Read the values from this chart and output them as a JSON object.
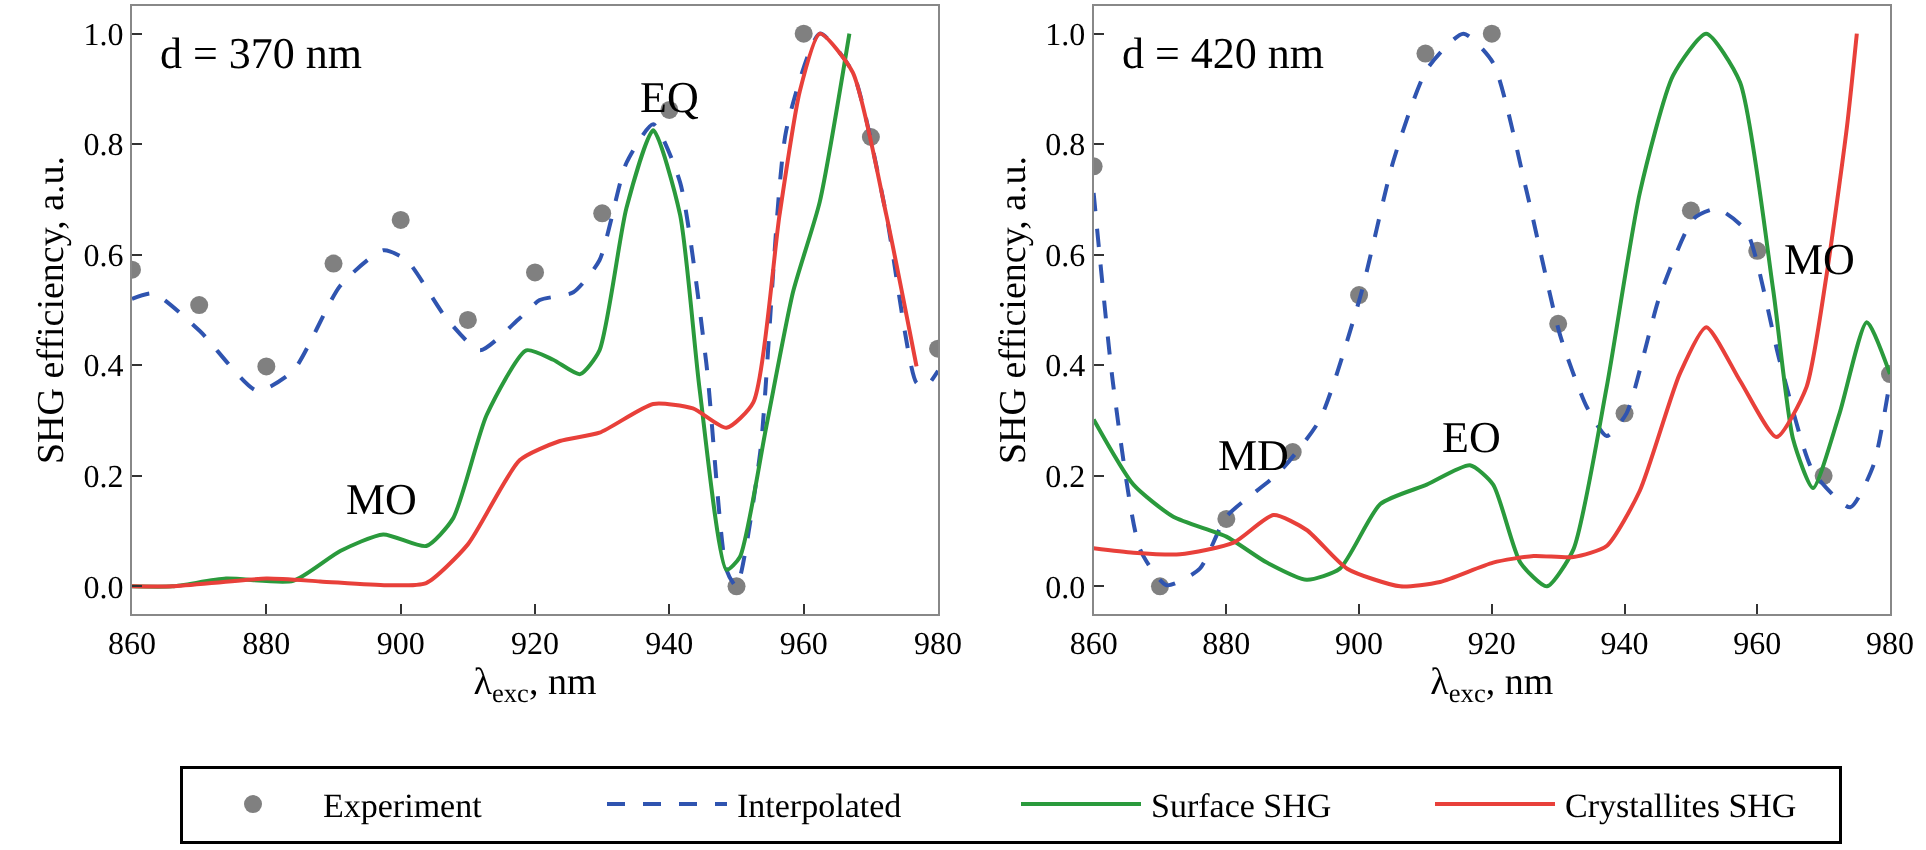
{
  "chart_data": [
    {
      "type": "line",
      "xlabel": "λ$_{exc}$, nm",
      "ylabel": "SHG efficiency, a.u.",
      "xlim": [
        860,
        980
      ],
      "xticks": [
        860,
        880,
        900,
        920,
        940,
        960,
        980
      ],
      "ylim": [
        -0.05,
        1.05
      ],
      "yticks": [
        {
          "value": 0,
          "label": "0.0"
        },
        {
          "value": 0.2,
          "label": "0.2"
        },
        {
          "value": 0.4,
          "label": "0.4"
        },
        {
          "value": 0.6,
          "label": "0.6"
        },
        {
          "value": 0.8,
          "label": "0.8"
        },
        {
          "value": 1,
          "label": "1.0"
        }
      ],
      "legend": "bottom",
      "annotations": [
        "d = 370 nm",
        "EQ",
        "MO"
      ],
      "series": [
        {
          "name": "Experiment",
          "type": "scatter",
          "marker": "circle",
          "color": "#808080",
          "x": [
            860,
            870,
            880,
            890,
            900,
            910,
            920,
            930,
            940,
            950,
            960,
            970,
            980
          ],
          "values": [
            0.573,
            0.509,
            0.398,
            0.584,
            0.663,
            0.482,
            0.568,
            0.675,
            0.862,
            0.0,
            1.0,
            0.813,
            0.43
          ]
        },
        {
          "name": "Interpolated",
          "line_style": "dashed",
          "color": "#2f54b0",
          "x": [
            860,
            863.2,
            870.1,
            878.6,
            884,
            891,
            897.4,
            900.9,
            906.8,
            911.8,
            917.7,
            920.7,
            925.7,
            929.6,
            933.6,
            937.6,
            941.6,
            945.5,
            948.5,
            950,
            953.5,
            957.4,
            962.4,
            967.3,
            972.3,
            976.8,
            978.3,
            980
          ],
          "values": [
            0.52,
            0.53,
            0.462,
            0.354,
            0.39,
            0.544,
            0.608,
            0.59,
            0.485,
            0.427,
            0.485,
            0.518,
            0.532,
            0.59,
            0.766,
            0.836,
            0.731,
            0.404,
            0.03,
            0.0,
            0.24,
            0.825,
            1.0,
            0.93,
            0.672,
            0.368,
            0.363,
            0.39
          ]
        },
        {
          "name": "Surface SHG",
          "line_style": "solid",
          "color": "#2a9a3c",
          "x": [
            860,
            866,
            874,
            884,
            891,
            897.4,
            903.8,
            907.8,
            912.8,
            918.7,
            922.7,
            926.7,
            929.6,
            933.6,
            937.6,
            941.6,
            944.5,
            948.5,
            950.5,
            954.4,
            958.4,
            962.4,
            966.8
          ],
          "values": [
            0.0,
            0.0,
            0.014,
            0.01,
            0.064,
            0.094,
            0.073,
            0.123,
            0.31,
            0.427,
            0.41,
            0.384,
            0.427,
            0.684,
            0.825,
            0.672,
            0.357,
            0.03,
            0.053,
            0.287,
            0.532,
            0.696,
            1.0
          ]
        },
        {
          "name": "Crystallites SHG",
          "line_style": "solid",
          "color": "#e8403a",
          "x": [
            860,
            866,
            880,
            888,
            897.9,
            903.8,
            910,
            917.7,
            923.7,
            929.6,
            937.6,
            943.5,
            948.5,
            952.5,
            956.4,
            959.4,
            962.4,
            967.3,
            972.3,
            976.8
          ],
          "values": [
            0.0,
            0.0,
            0.014,
            0.009,
            0.002,
            0.006,
            0.076,
            0.228,
            0.263,
            0.278,
            0.33,
            0.322,
            0.287,
            0.333,
            0.672,
            0.895,
            1.0,
            0.93,
            0.672,
            0.398
          ]
        }
      ]
    },
    {
      "type": "line",
      "xlabel": "λ$_{exc}$, nm",
      "ylabel": "SHG efficiency, a.u.",
      "xlim": [
        860,
        980
      ],
      "xticks": [
        860,
        880,
        900,
        920,
        940,
        960,
        980
      ],
      "ylim": [
        -0.05,
        1.05
      ],
      "yticks": [
        {
          "value": 0,
          "label": "0.0"
        },
        {
          "value": 0.2,
          "label": "0.2"
        },
        {
          "value": 0.4,
          "label": "0.4"
        },
        {
          "value": 0.6,
          "label": "0.6"
        },
        {
          "value": 0.8,
          "label": "0.8"
        },
        {
          "value": 1,
          "label": "1.0"
        }
      ],
      "annotations": [
        "d = 420 nm",
        "MD",
        "EO",
        "MO"
      ],
      "series": [
        {
          "type": "scatter",
          "marker": "circle",
          "color": "#808080",
          "x": [
            860,
            870,
            880,
            890,
            900,
            910,
            920,
            930,
            940,
            950,
            960,
            970,
            980
          ],
          "values": [
            0.76,
            0.0,
            0.122,
            0.243,
            0.527,
            0.964,
            1.0,
            0.475,
            0.313,
            0.68,
            0.607,
            0.2,
            0.384
          ]
        },
        {
          "line_style": "dashed",
          "color": "#2f54b0",
          "x": [
            860,
            863,
            867,
            871,
            876,
            880,
            888.1,
            894.1,
            900.2,
            905.2,
            910.2,
            915.7,
            920.2,
            925.3,
            930.3,
            934.3,
            937.3,
            940.3,
            945.3,
            950.4,
            953.9,
            958.4,
            963.4,
            968.4,
            974,
            977.5,
            980
          ],
          "values": [
            0.712,
            0.36,
            0.067,
            0.002,
            0.032,
            0.126,
            0.208,
            0.302,
            0.525,
            0.771,
            0.935,
            1.0,
            0.947,
            0.712,
            0.454,
            0.325,
            0.272,
            0.313,
            0.525,
            0.665,
            0.683,
            0.642,
            0.407,
            0.208,
            0.143,
            0.219,
            0.372
          ]
        },
        {
          "line_style": "solid",
          "color": "#2a9a3c",
          "x": [
            860,
            866,
            872,
            880,
            886.1,
            892.1,
            897.1,
            903.2,
            910.2,
            916.7,
            920.2,
            924.3,
            928.3,
            932.3,
            937.3,
            942.3,
            947.3,
            952.3,
            957.4,
            962.4,
            965.4,
            968.4,
            972.4,
            976.5,
            980
          ],
          "values": [
            0.302,
            0.184,
            0.126,
            0.09,
            0.043,
            0.012,
            0.032,
            0.149,
            0.184,
            0.219,
            0.184,
            0.043,
            0.0,
            0.067,
            0.36,
            0.712,
            0.924,
            1.0,
            0.912,
            0.536,
            0.266,
            0.178,
            0.313,
            0.478,
            0.384
          ]
        },
        {
          "line_style": "solid",
          "color": "#e8403a",
          "x": [
            860,
            866,
            873,
            881.1,
            887.1,
            892.1,
            898.2,
            906.2,
            912.2,
            920.2,
            926.3,
            932.3,
            937.3,
            942.3,
            948.3,
            952.3,
            957.4,
            962.9,
            967.4,
            970.4,
            973.5,
            975
          ],
          "values": [
            0.069,
            0.061,
            0.058,
            0.079,
            0.129,
            0.102,
            0.032,
            0.0,
            0.008,
            0.043,
            0.055,
            0.053,
            0.073,
            0.173,
            0.384,
            0.469,
            0.372,
            0.27,
            0.36,
            0.56,
            0.83,
            1.0
          ]
        }
      ]
    }
  ]
}
